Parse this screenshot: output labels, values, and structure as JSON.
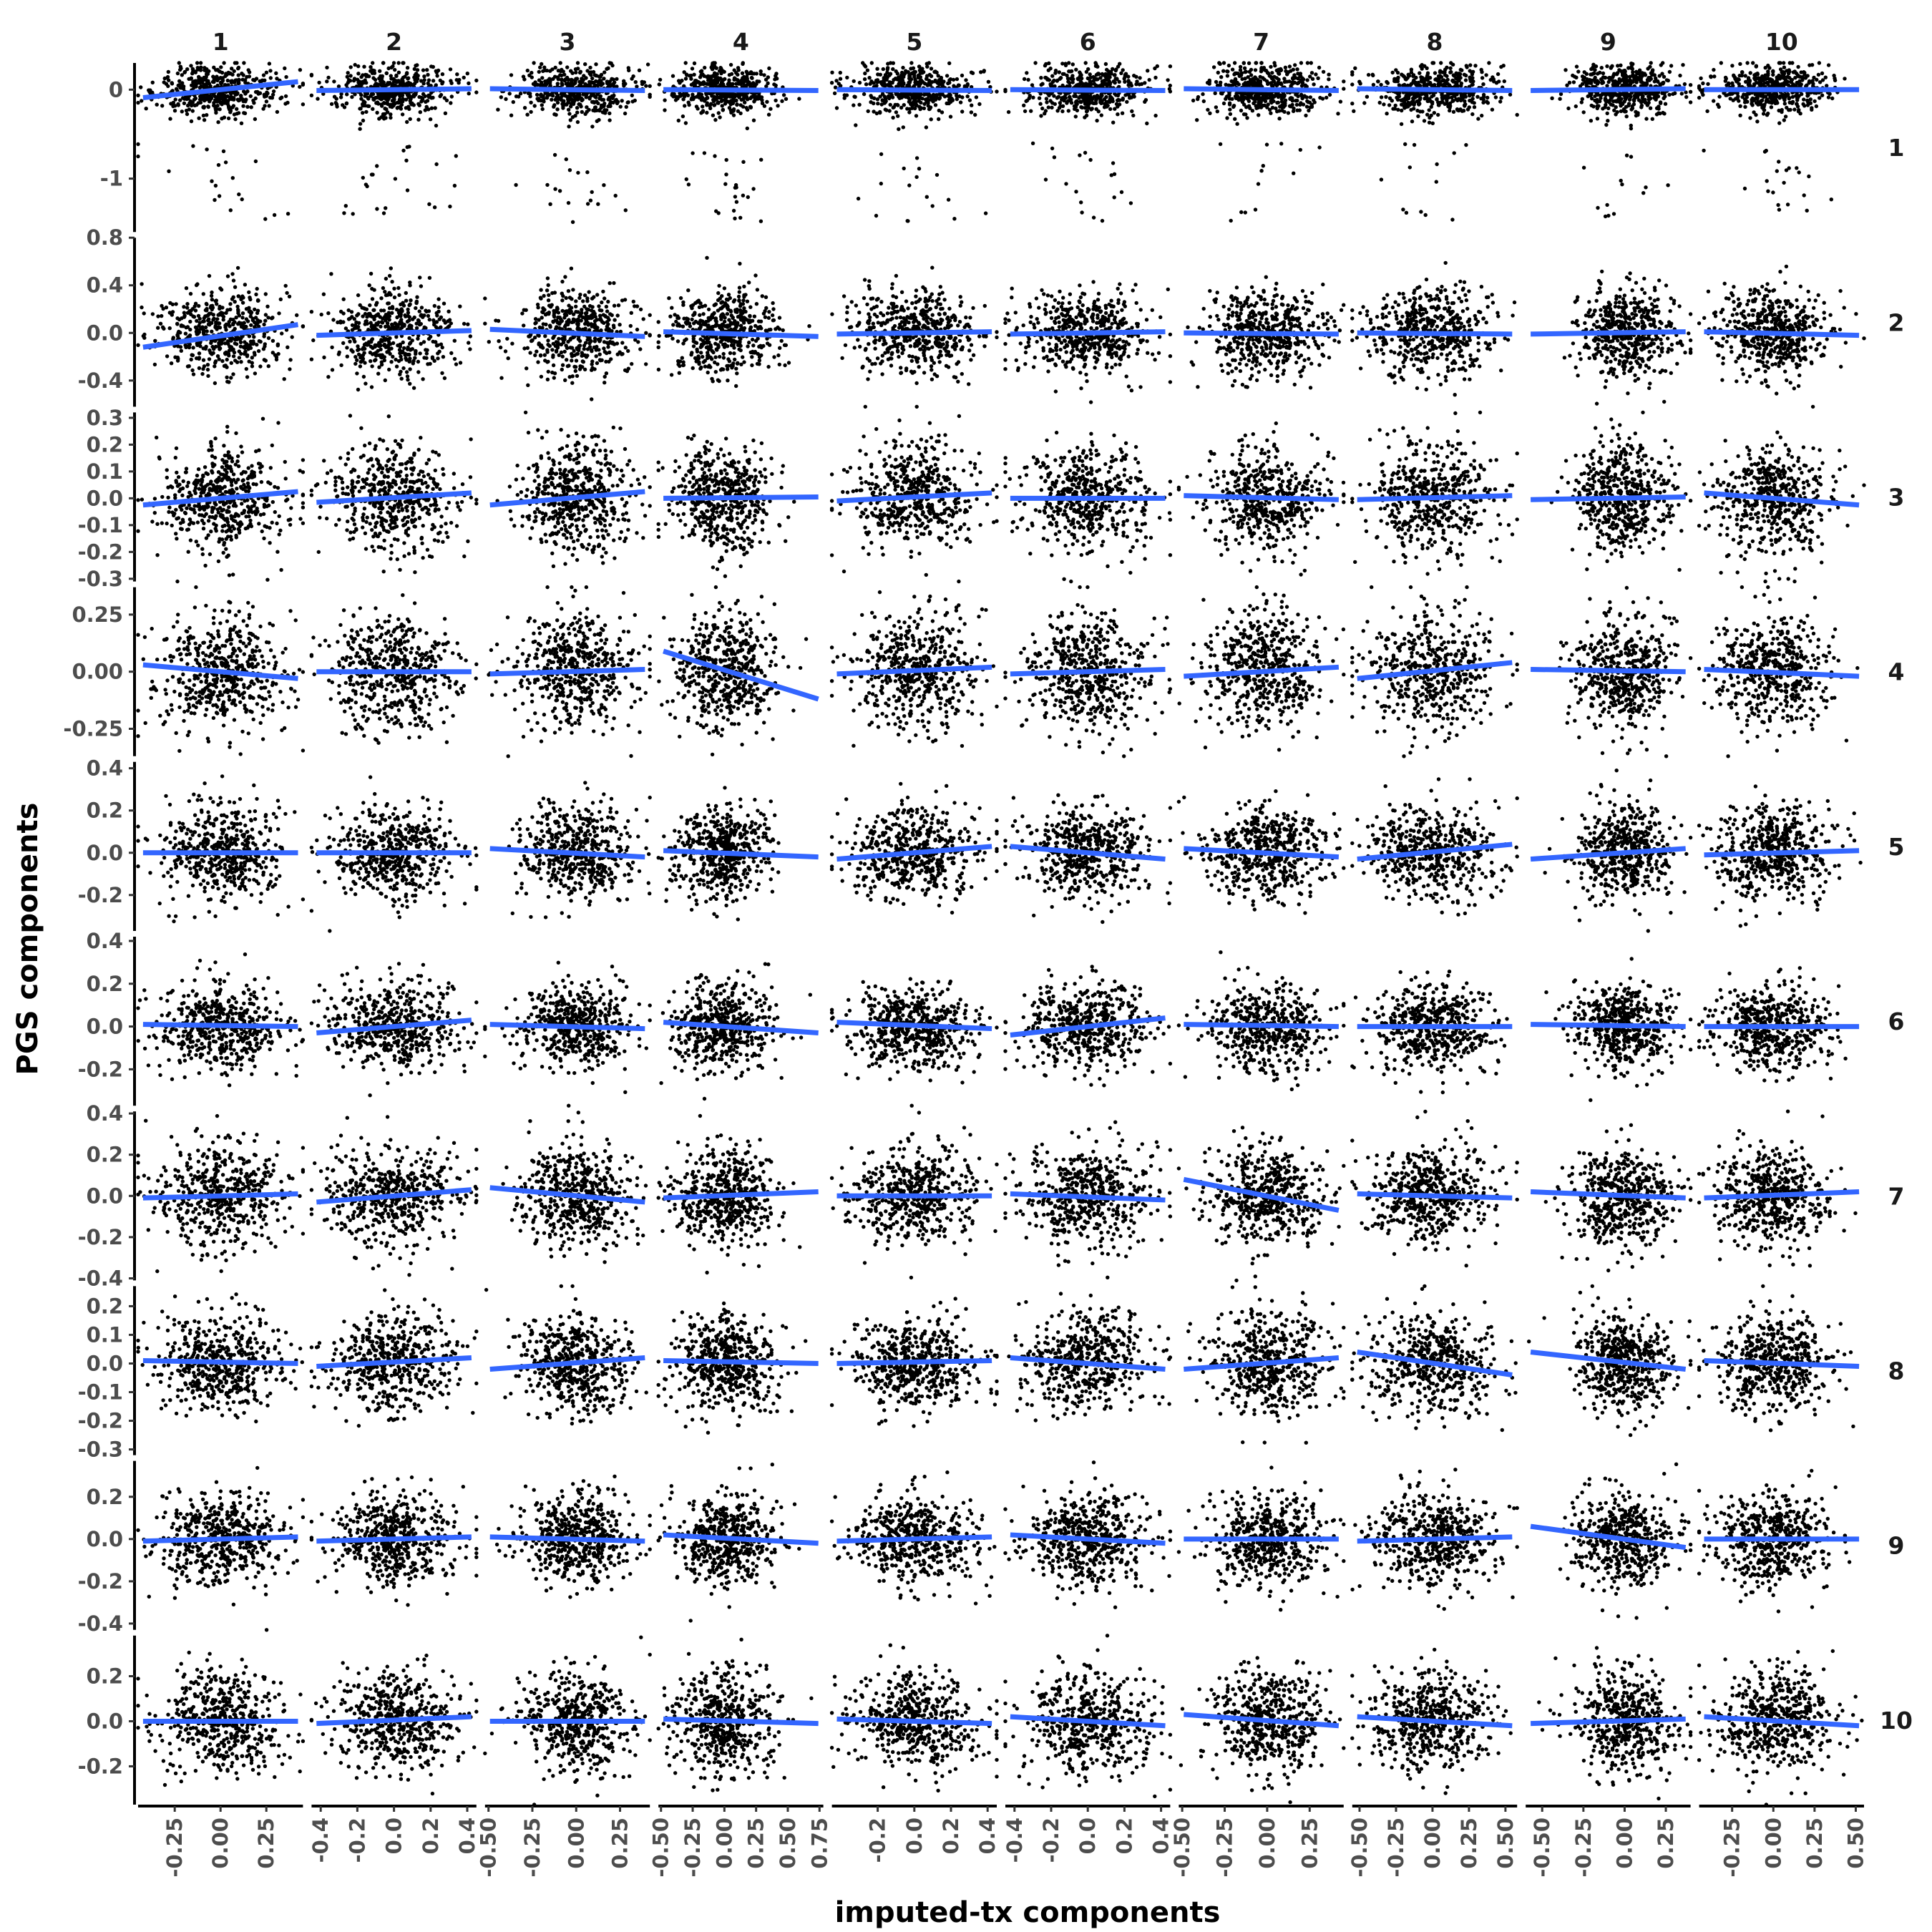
{
  "chart_data": {
    "type": "scatter",
    "layout": "facet_grid",
    "xlabel": "imputed-tx components",
    "ylabel": "PGS components",
    "grid": false,
    "column_strips": [
      "1",
      "2",
      "3",
      "4",
      "5",
      "6",
      "7",
      "8",
      "9",
      "10"
    ],
    "row_strips": [
      "1",
      "2",
      "3",
      "4",
      "5",
      "6",
      "7",
      "8",
      "9",
      "10"
    ],
    "columns": [
      {
        "xlim": [
          -0.45,
          0.45
        ],
        "ticks": [
          -0.25,
          0.0,
          0.25
        ],
        "labels": [
          "-0.25",
          "0.00",
          "0.25"
        ]
      },
      {
        "xlim": [
          -0.45,
          0.45
        ],
        "ticks": [
          -0.4,
          -0.2,
          0.0,
          0.2,
          0.4
        ],
        "labels": [
          "-0.4",
          "-0.2",
          "0.0",
          "0.2",
          "0.4"
        ]
      },
      {
        "xlim": [
          -0.52,
          0.42
        ],
        "ticks": [
          -0.5,
          -0.25,
          0.0,
          0.25
        ],
        "labels": [
          "-0.50",
          "-0.25",
          "0.00",
          "0.25"
        ]
      },
      {
        "xlim": [
          -0.52,
          0.78
        ],
        "ticks": [
          -0.5,
          -0.25,
          0.0,
          0.25,
          0.5,
          0.75
        ],
        "labels": [
          "-0.50",
          "-0.25",
          "0.00",
          "0.25",
          "0.50",
          "0.75"
        ]
      },
      {
        "xlim": [
          -0.45,
          0.45
        ],
        "ticks": [
          -0.2,
          0.0,
          0.2,
          0.4
        ],
        "labels": [
          "-0.2",
          "0.0",
          "0.2",
          "0.4"
        ]
      },
      {
        "xlim": [
          -0.45,
          0.45
        ],
        "ticks": [
          -0.4,
          -0.2,
          0.0,
          0.2,
          0.4
        ],
        "labels": [
          "-0.4",
          "-0.2",
          "0.0",
          "0.2",
          "0.4"
        ]
      },
      {
        "xlim": [
          -0.52,
          0.45
        ],
        "ticks": [
          -0.5,
          -0.25,
          0.0,
          0.25
        ],
        "labels": [
          "-0.50",
          "-0.25",
          "0.00",
          "0.25"
        ]
      },
      {
        "xlim": [
          -0.55,
          0.58
        ],
        "ticks": [
          -0.5,
          -0.25,
          0.0,
          0.25,
          0.5
        ],
        "labels": [
          "-0.50",
          "-0.25",
          "0.00",
          "0.25",
          "0.50"
        ]
      },
      {
        "xlim": [
          -0.6,
          0.4
        ],
        "ticks": [
          -0.5,
          -0.25,
          0.0,
          0.25
        ],
        "labels": [
          "-0.50",
          "-0.25",
          "0.00",
          "0.25"
        ]
      },
      {
        "xlim": [
          -0.45,
          0.55
        ],
        "ticks": [
          -0.25,
          0.0,
          0.25,
          0.5
        ],
        "labels": [
          "-0.25",
          "0.00",
          "0.25",
          "0.50"
        ]
      }
    ],
    "rows": [
      {
        "ylim": [
          -1.6,
          0.3
        ],
        "ticks": [
          0,
          -1
        ],
        "labels": [
          "0",
          "-1"
        ],
        "sd": 0.14,
        "outlier_fraction": 0.04,
        "outlier_range": [
          -1.5,
          -0.6
        ]
      },
      {
        "ylim": [
          -0.62,
          0.8
        ],
        "ticks": [
          0.8,
          0.4,
          0.0,
          -0.4
        ],
        "labels": [
          "0.8",
          "0.4",
          "0.0",
          "-0.4"
        ],
        "sd": 0.18
      },
      {
        "ylim": [
          -0.31,
          0.32
        ],
        "ticks": [
          0.3,
          0.2,
          0.1,
          0.0,
          -0.1,
          -0.2,
          -0.3
        ],
        "labels": [
          "0.3",
          "0.2",
          "0.1",
          "0.0",
          "-0.1",
          "-0.2",
          "-0.3"
        ],
        "sd": 0.1
      },
      {
        "ylim": [
          -0.37,
          0.37
        ],
        "ticks": [
          0.25,
          0.0,
          -0.25
        ],
        "labels": [
          "0.25",
          "0.00",
          "-0.25"
        ],
        "sd": 0.13
      },
      {
        "ylim": [
          -0.37,
          0.43
        ],
        "ticks": [
          0.4,
          0.2,
          0.0,
          -0.2
        ],
        "labels": [
          "0.4",
          "0.2",
          "0.0",
          "-0.2"
        ],
        "sd": 0.11
      },
      {
        "ylim": [
          -0.37,
          0.42
        ],
        "ticks": [
          0.4,
          0.2,
          0.0,
          -0.2
        ],
        "labels": [
          "0.4",
          "0.2",
          "0.0",
          "-0.2"
        ],
        "sd": 0.1
      },
      {
        "ylim": [
          -0.41,
          0.41
        ],
        "ticks": [
          0.4,
          0.2,
          0.0,
          -0.2,
          -0.4
        ],
        "labels": [
          "0.4",
          "0.2",
          "0.0",
          "-0.2",
          "-0.4"
        ],
        "sd": 0.12
      },
      {
        "ylim": [
          -0.32,
          0.27
        ],
        "ticks": [
          0.2,
          0.1,
          0.0,
          -0.1,
          -0.2,
          -0.3
        ],
        "labels": [
          "0.2",
          "0.1",
          "0.0",
          "-0.1",
          "-0.2",
          "-0.3"
        ],
        "sd": 0.085
      },
      {
        "ylim": [
          -0.43,
          0.37
        ],
        "ticks": [
          0.2,
          0.0,
          -0.2,
          -0.4
        ],
        "labels": [
          "0.2",
          "0.0",
          "-0.2",
          "-0.4"
        ],
        "sd": 0.11
      },
      {
        "ylim": [
          -0.37,
          0.38
        ],
        "ticks": [
          0.2,
          0.0,
          -0.2
        ],
        "labels": [
          "0.2",
          "0.0",
          "-0.2"
        ],
        "sd": 0.11
      }
    ],
    "fit_lines": [
      [
        [
          -0.09,
          0.09
        ],
        [
          -0.01,
          0.01
        ],
        [
          0.01,
          -0.01
        ],
        [
          0.0,
          -0.01
        ],
        [
          0.0,
          -0.01
        ],
        [
          0.0,
          -0.01
        ],
        [
          0.01,
          -0.01
        ],
        [
          0.01,
          -0.01
        ],
        [
          -0.01,
          0.01
        ],
        [
          0.0,
          0.0
        ]
      ],
      [
        [
          -0.12,
          0.07
        ],
        [
          -0.02,
          0.02
        ],
        [
          0.03,
          -0.03
        ],
        [
          0.01,
          -0.03
        ],
        [
          -0.01,
          0.01
        ],
        [
          -0.01,
          0.01
        ],
        [
          0.0,
          -0.01
        ],
        [
          0.0,
          -0.01
        ],
        [
          -0.01,
          0.01
        ],
        [
          0.01,
          -0.02
        ]
      ],
      [
        [
          -0.025,
          0.025
        ],
        [
          -0.015,
          0.02
        ],
        [
          -0.025,
          0.025
        ],
        [
          0.0,
          0.005
        ],
        [
          -0.01,
          0.02
        ],
        [
          0.0,
          0.0
        ],
        [
          0.01,
          -0.005
        ],
        [
          -0.005,
          0.01
        ],
        [
          -0.005,
          0.005
        ],
        [
          0.02,
          -0.025
        ]
      ],
      [
        [
          0.03,
          -0.03
        ],
        [
          0.0,
          0.0
        ],
        [
          -0.01,
          0.01
        ],
        [
          0.09,
          -0.12
        ],
        [
          -0.01,
          0.02
        ],
        [
          -0.01,
          0.01
        ],
        [
          -0.02,
          0.02
        ],
        [
          -0.03,
          0.04
        ],
        [
          0.01,
          0.0
        ],
        [
          0.01,
          -0.02
        ]
      ],
      [
        [
          0.0,
          0.0
        ],
        [
          0.0,
          0.0
        ],
        [
          0.02,
          -0.02
        ],
        [
          0.01,
          -0.02
        ],
        [
          -0.03,
          0.03
        ],
        [
          0.03,
          -0.03
        ],
        [
          0.02,
          -0.02
        ],
        [
          -0.03,
          0.04
        ],
        [
          -0.03,
          0.02
        ],
        [
          -0.01,
          0.01
        ]
      ],
      [
        [
          0.01,
          0.0
        ],
        [
          -0.03,
          0.03
        ],
        [
          0.01,
          -0.01
        ],
        [
          0.02,
          -0.03
        ],
        [
          0.02,
          -0.01
        ],
        [
          -0.04,
          0.04
        ],
        [
          0.01,
          0.0
        ],
        [
          0.0,
          0.0
        ],
        [
          0.01,
          0.0
        ],
        [
          0.0,
          0.0
        ]
      ],
      [
        [
          -0.01,
          0.01
        ],
        [
          -0.03,
          0.03
        ],
        [
          0.04,
          -0.03
        ],
        [
          -0.01,
          0.02
        ],
        [
          0.0,
          0.0
        ],
        [
          0.01,
          -0.02
        ],
        [
          0.08,
          -0.07
        ],
        [
          0.01,
          -0.01
        ],
        [
          0.02,
          -0.01
        ],
        [
          -0.01,
          0.02
        ]
      ],
      [
        [
          0.01,
          0.0
        ],
        [
          -0.01,
          0.02
        ],
        [
          -0.02,
          0.02
        ],
        [
          0.01,
          0.0
        ],
        [
          0.0,
          0.01
        ],
        [
          0.02,
          -0.02
        ],
        [
          -0.02,
          0.02
        ],
        [
          0.04,
          -0.04
        ],
        [
          0.04,
          -0.02
        ],
        [
          0.01,
          -0.01
        ]
      ],
      [
        [
          -0.01,
          0.01
        ],
        [
          -0.01,
          0.01
        ],
        [
          0.01,
          -0.01
        ],
        [
          0.02,
          -0.02
        ],
        [
          -0.01,
          0.01
        ],
        [
          0.02,
          -0.02
        ],
        [
          0.0,
          0.0
        ],
        [
          -0.01,
          0.01
        ],
        [
          0.06,
          -0.04
        ],
        [
          0.0,
          0.0
        ]
      ],
      [
        [
          0.0,
          0.0
        ],
        [
          -0.01,
          0.02
        ],
        [
          0.0,
          0.0
        ],
        [
          0.01,
          -0.01
        ],
        [
          0.01,
          -0.01
        ],
        [
          0.02,
          -0.02
        ],
        [
          0.03,
          -0.02
        ],
        [
          0.02,
          -0.02
        ],
        [
          -0.01,
          0.01
        ],
        [
          0.02,
          -0.02
        ]
      ]
    ],
    "points_per_panel": 500,
    "colors": {
      "points": "#000000",
      "fit": "#3366ff",
      "axis": "#000000",
      "tick_text": "#4d4d4d"
    }
  }
}
